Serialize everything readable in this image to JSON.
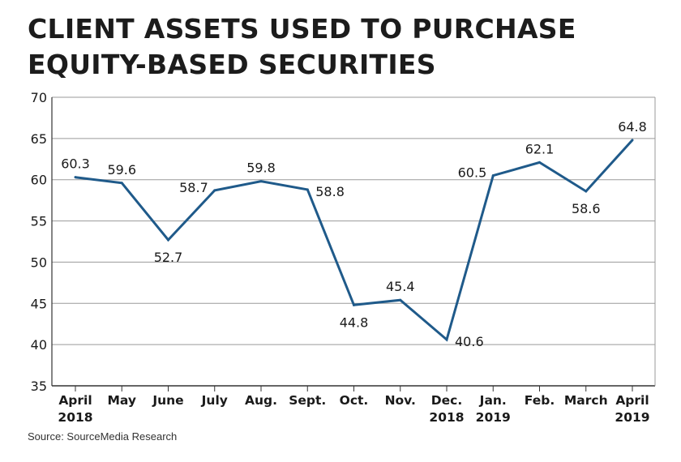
{
  "title_lines": [
    "CLIENT ASSETS USED TO PURCHASE",
    "EQUITY-BASED SECURITIES"
  ],
  "source": "Source: SourceMedia Research",
  "colors": {
    "line": "#1f5a8a",
    "grid": "#9a9a9a",
    "axis": "#333333",
    "text": "#1a1a1a"
  },
  "chart_data": {
    "type": "line",
    "title": "CLIENT ASSETS USED TO PURCHASE EQUITY-BASED SECURITIES",
    "categories": [
      [
        "April",
        "2018"
      ],
      [
        "May"
      ],
      [
        "June"
      ],
      [
        "July"
      ],
      [
        "Aug."
      ],
      [
        "Sept."
      ],
      [
        "Oct."
      ],
      [
        "Nov."
      ],
      [
        "Dec.",
        "2018"
      ],
      [
        "Jan.",
        "2019"
      ],
      [
        "Feb."
      ],
      [
        "March"
      ],
      [
        "April",
        "2019"
      ]
    ],
    "values": [
      60.3,
      59.6,
      52.7,
      58.7,
      59.8,
      58.8,
      44.8,
      45.4,
      40.6,
      60.5,
      62.1,
      58.6,
      64.8
    ],
    "labels": [
      "60.3",
      "59.6",
      "52.7",
      "58.7",
      "59.8",
      "58.8",
      "44.8",
      "45.4",
      "40.6",
      "60.5",
      "62.1",
      "58.6",
      "64.8"
    ],
    "label_position": [
      "above",
      "above",
      "below",
      "left",
      "above",
      "right",
      "below",
      "above",
      "right",
      "left",
      "above",
      "below",
      "above"
    ],
    "ylim": [
      35,
      70
    ],
    "yticks": [
      "35",
      "40",
      "45",
      "50",
      "55",
      "60",
      "65",
      "70"
    ],
    "grid": true,
    "xlabel": "",
    "ylabel": ""
  }
}
